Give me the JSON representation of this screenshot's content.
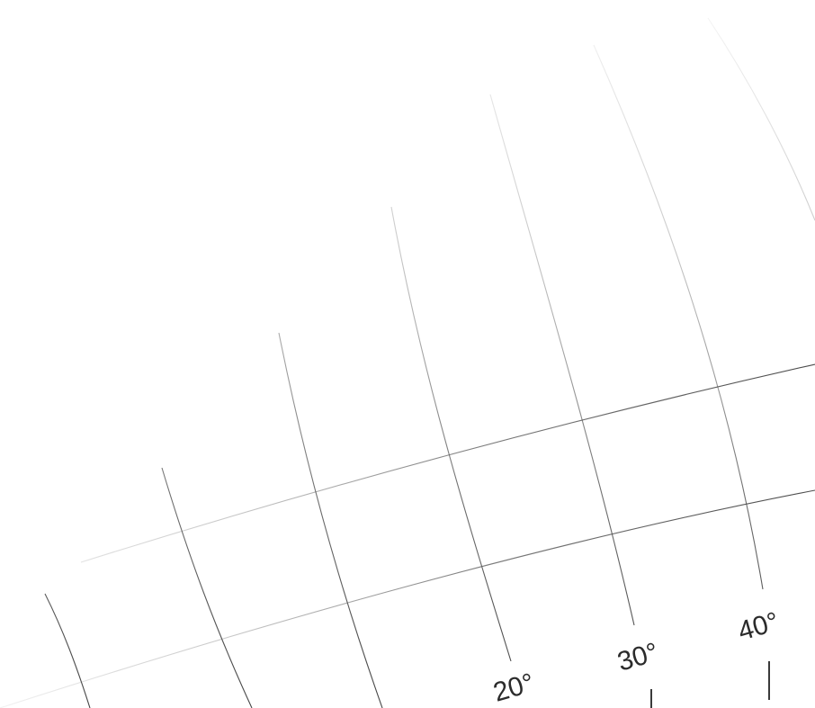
{
  "graticule": {
    "meridian_labels": [
      {
        "id": "meridian-label-20",
        "text": "20°"
      },
      {
        "id": "meridian-label-30",
        "text": "30°"
      },
      {
        "id": "meridian-label-40",
        "text": "40°"
      }
    ]
  }
}
